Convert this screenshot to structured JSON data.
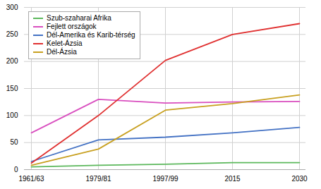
{
  "chart_data": {
    "type": "line",
    "categories": [
      "1961/63",
      "1979/81",
      "1997/99",
      "2015",
      "2030"
    ],
    "series": [
      {
        "name": "Szub-szaharai Afrika",
        "color": "#5cb85c",
        "values": [
          5,
          8,
          10,
          13,
          13
        ]
      },
      {
        "name": "Fejlett országok",
        "color": "#d94fbf",
        "values": [
          68,
          130,
          123,
          125,
          126
        ]
      },
      {
        "name": "Dél-Amerika és Karib-térség",
        "color": "#4472c4",
        "values": [
          15,
          55,
          60,
          68,
          78
        ]
      },
      {
        "name": "Kelet-Ázsia",
        "color": "#e03030",
        "values": [
          12,
          100,
          202,
          250,
          270
        ]
      },
      {
        "name": "Dél-Ázsia",
        "color": "#c8a020",
        "values": [
          8,
          38,
          110,
          122,
          138
        ]
      }
    ],
    "ylim": [
      0,
      300
    ],
    "yticks": [
      0,
      50,
      100,
      150,
      200,
      250,
      300
    ],
    "grid": true,
    "legend": "upper left"
  }
}
